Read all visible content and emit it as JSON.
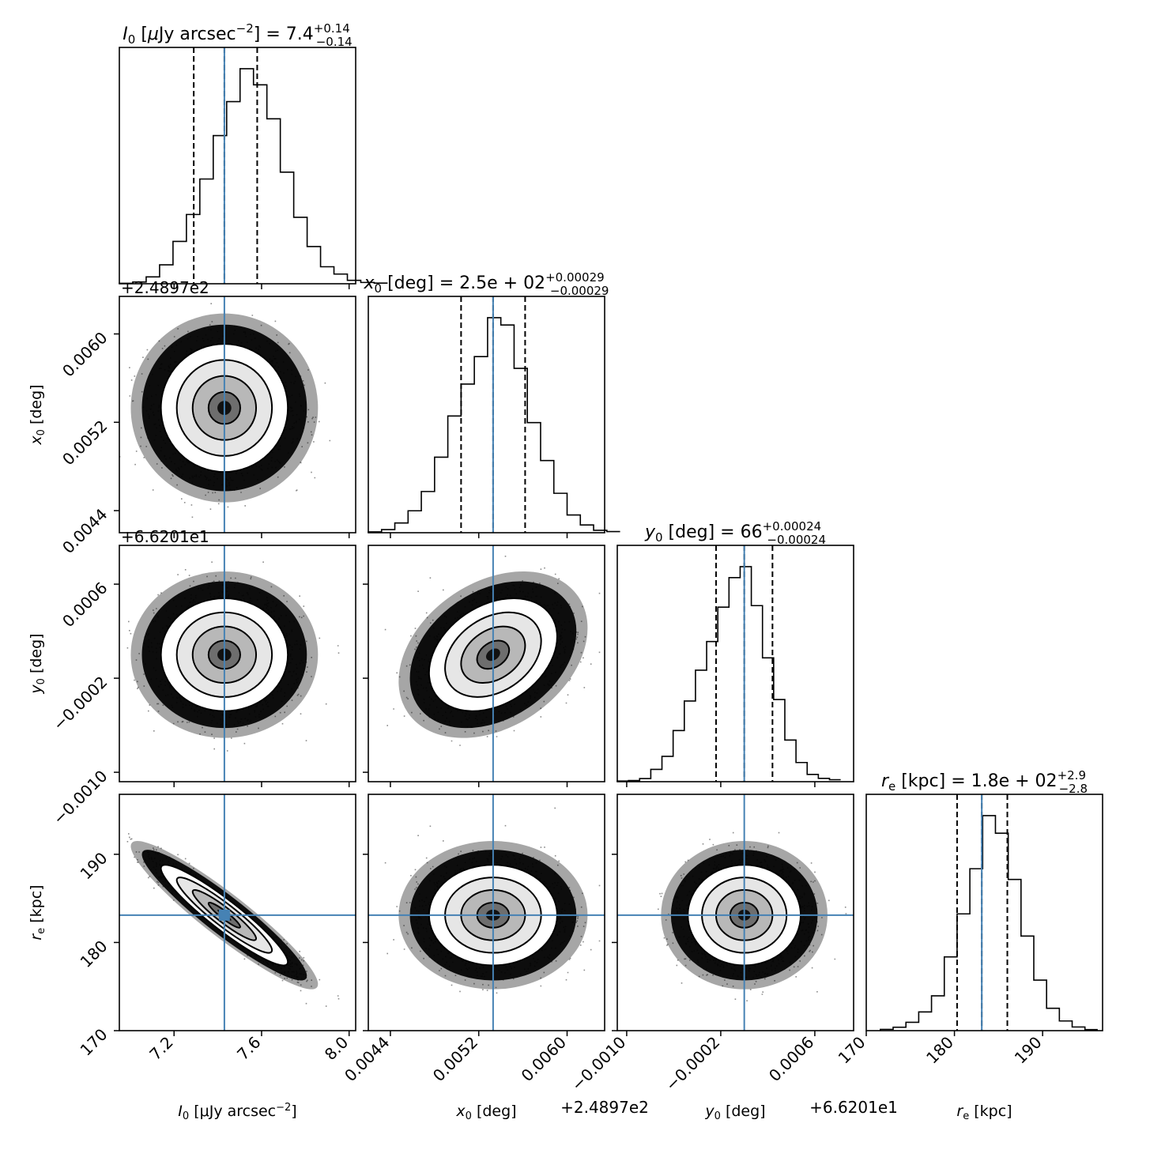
{
  "chart_data": {
    "type": "corner",
    "description_params": [
      "I0",
      "x0",
      "y0",
      "re"
    ],
    "truth_color": "#4682b4",
    "truths": [
      7.43,
      0.00533,
      0.0,
      183.1
    ],
    "params": [
      {
        "key": "I0",
        "axis_label": "I_0 [µJy arcsec^-2]",
        "title": {
          "sym": "I",
          "sub": "0",
          "mid": " [",
          "mu": "μ",
          "unit": "Jy arcsec",
          "sup": "−2",
          "tail": "] = 7.4",
          "plus": "+0.14",
          "minus": "−0.14"
        },
        "range": [
          6.95,
          8.03
        ],
        "ticks": [
          7.2,
          7.6,
          8.0
        ],
        "tick_labels": [
          "7.2",
          "7.6",
          "8.0"
        ],
        "offset": "",
        "median": 7.43,
        "q16": 7.29,
        "q84": 7.58,
        "hist": {
          "start": 6.95,
          "width": 0.0613,
          "counts": [
            0.2,
            0.8,
            3.2,
            8.8,
            19.7,
            32.2,
            48.7,
            68.9,
            84.7,
            100,
            92.5,
            76.7,
            51.9,
            30.9,
            17.3,
            7.9,
            4.5,
            1.6,
            0.6,
            0.3
          ]
        }
      },
      {
        "key": "x0",
        "axis_label": "x_0 [deg]",
        "title": {
          "sym": "x",
          "sub": "0",
          "tail": " [deg] = 2.5e + 02",
          "plus": "+0.00029",
          "minus": "−0.00029"
        },
        "range": [
          0.0042,
          0.00634
        ],
        "ticks": [
          0.0044,
          0.0052,
          0.006
        ],
        "tick_labels": [
          "0.0044",
          "0.0052",
          "0.0060"
        ],
        "offset": "+2.4897e2",
        "median": 0.00533,
        "q16": 0.00504,
        "q84": 0.00562,
        "hist": {
          "start": 0.0042,
          "width": 0.00012,
          "counts": [
            0.4,
            1.4,
            4.4,
            9.9,
            18.6,
            34.1,
            52.7,
            67.1,
            79.5,
            97.1,
            93.8,
            74.2,
            49.7,
            32.6,
            17.8,
            8.0,
            3.5,
            1.1,
            0.5
          ]
        }
      },
      {
        "key": "y0",
        "axis_label": "y_0 [deg]",
        "title": {
          "sym": "y",
          "sub": "0",
          "tail": " [deg] = 66",
          "plus": "+0.00024",
          "minus": "−0.00024"
        },
        "range": [
          -0.00108,
          0.00093
        ],
        "ticks": [
          -0.001,
          -0.0002,
          0.0006
        ],
        "tick_labels": [
          "−0.0010",
          "−0.0002",
          "0.0006"
        ],
        "offset": "+6.6201e1",
        "median": 0.0,
        "q16": -0.00024,
        "q84": 0.00024,
        "hist": {
          "start": -0.00108,
          "width": 9.5e-05,
          "counts": [
            0.3,
            0.5,
            1.4,
            5.6,
            11.5,
            23.2,
            36.6,
            50.6,
            63.6,
            79.2,
            92.6,
            97.6,
            79.9,
            56.2,
            37.3,
            18.9,
            8.7,
            3.3,
            1.5,
            0.9
          ]
        }
      },
      {
        "key": "re",
        "axis_label": "r_e [kpc]",
        "title": {
          "sym": "r",
          "sub": "e",
          "tail": " [kpc] = 1.8e + 02",
          "plus": "+2.9",
          "minus": "−2.8"
        },
        "range": [
          170.0,
          196.8
        ],
        "ticks": [
          170,
          180,
          190
        ],
        "tick_labels": [
          "170",
          "180",
          "190"
        ],
        "offset": "",
        "median": 183.1,
        "q16": 180.3,
        "q84": 186.0,
        "hist": {
          "start": 171.6,
          "width": 1.45,
          "counts": [
            0.6,
            1.6,
            3.9,
            8.7,
            16.2,
            34.3,
            54.3,
            75.3,
            100,
            91.8,
            70.3,
            44.0,
            23.5,
            10.4,
            4.5,
            1.7,
            0.5
          ]
        }
      }
    ],
    "x_axis_labels": {
      "I0": "I_0 [μJy arcsec^−2]",
      "x0": "x_0 [deg]",
      "y0": "y_0 [deg]",
      "re": "r_e [kpc]"
    },
    "pair_correlations": {
      "x0|I0": 0.0,
      "y0|I0": 0.0,
      "y0|x0": 0.32,
      "re|I0": -0.93,
      "re|x0": 0.0,
      "re|y0": 0.0
    },
    "contour_levels": [
      "0.5σ",
      "1σ",
      "1.5σ",
      "2σ"
    ],
    "grid": false,
    "legend": "none"
  }
}
